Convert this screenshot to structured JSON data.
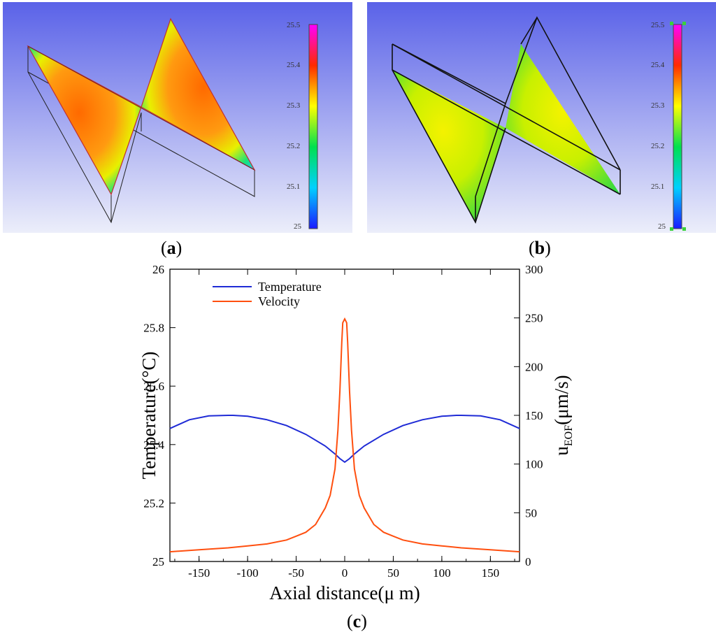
{
  "panels": {
    "a": {
      "label": "a",
      "colorbar_ticks": [
        "25.5",
        "25.4",
        "25.3",
        "25.2",
        "25.1",
        "25"
      ]
    },
    "b": {
      "label": "b",
      "colorbar_ticks": [
        "25.5",
        "25.4",
        "25.3",
        "25.2",
        "25.1",
        "25"
      ]
    },
    "c": {
      "label": "c"
    }
  },
  "colors": {
    "background_top": "#5a62e8",
    "background_bottom": "#eceefa",
    "temperature": "#1f2bd6",
    "velocity": "#ff4f0f",
    "field_hot": "#ff6a00",
    "field_mid": "#e8f000",
    "field_cool": "#19e37b"
  },
  "chart_data": {
    "type": "line",
    "xlabel": "Axial distance(μ m)",
    "ylabel_left": "Temperature(°C)",
    "ylabel_right": "u_EOF(μm/s)",
    "xlim": [
      -180,
      180
    ],
    "ylim_left": [
      25,
      26
    ],
    "ylim_right": [
      0,
      300
    ],
    "x_ticks": [
      -150,
      -100,
      -50,
      0,
      50,
      100,
      150
    ],
    "y_left_ticks": [
      "25",
      "25.2",
      "25.4",
      "25.6",
      "25.8",
      "26"
    ],
    "y_right_ticks": [
      "0",
      "50",
      "100",
      "150",
      "200",
      "250",
      "300"
    ],
    "legend": [
      "Temperature",
      "Velocity"
    ],
    "series": [
      {
        "name": "Temperature",
        "axis": "left",
        "x": [
          -180,
          -160,
          -140,
          -120,
          -115,
          -100,
          -80,
          -60,
          -40,
          -20,
          -10,
          -5,
          0,
          5,
          10,
          20,
          40,
          60,
          80,
          100,
          115,
          120,
          140,
          160,
          180
        ],
        "values": [
          25.455,
          25.485,
          25.498,
          25.5,
          25.5,
          25.497,
          25.485,
          25.465,
          25.435,
          25.395,
          25.368,
          25.352,
          25.34,
          25.352,
          25.368,
          25.395,
          25.435,
          25.465,
          25.485,
          25.497,
          25.5,
          25.5,
          25.498,
          25.485,
          25.455
        ]
      },
      {
        "name": "Velocity",
        "axis": "right",
        "x": [
          -180,
          -150,
          -120,
          -100,
          -80,
          -60,
          -50,
          -40,
          -30,
          -20,
          -15,
          -10,
          -7,
          -5,
          -3,
          -2,
          0,
          2,
          3,
          5,
          7,
          10,
          15,
          20,
          30,
          40,
          50,
          60,
          80,
          100,
          120,
          150,
          180
        ],
        "values": [
          10,
          12,
          14,
          16,
          18,
          22,
          26,
          30,
          38,
          55,
          68,
          95,
          135,
          175,
          225,
          245,
          249,
          245,
          225,
          175,
          135,
          95,
          68,
          55,
          38,
          30,
          26,
          22,
          18,
          16,
          14,
          12,
          10
        ]
      }
    ]
  }
}
